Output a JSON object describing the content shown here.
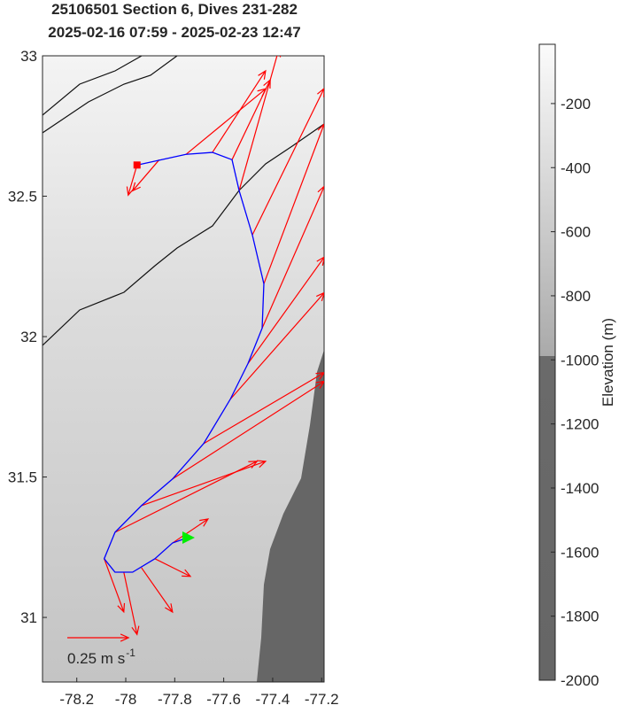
{
  "chart_data": {
    "type": "quiver-map",
    "title": [
      "25106501 Section 6, Dives 231-282",
      "2025-02-16 07:59 - 2025-02-23 12:47"
    ],
    "xlim": [
      -78.34,
      -77.19
    ],
    "xticks": [
      -78.2,
      -78,
      -77.8,
      -77.6,
      -77.4,
      -77.2
    ],
    "ylim": [
      30.77,
      33
    ],
    "yticks": [
      31,
      31.5,
      32,
      32.5,
      33
    ],
    "track": {
      "color": "#0000ff",
      "lon": [
        -77.954,
        -77.754,
        -77.646,
        -77.566,
        -77.537,
        -77.483,
        -77.436,
        -77.443,
        -77.501,
        -77.573,
        -77.682,
        -77.809,
        -77.936,
        -78.044,
        -78.088,
        -78.044,
        -77.972,
        -77.881,
        -77.809,
        -77.747
      ],
      "lat": [
        32.611,
        32.649,
        32.656,
        32.63,
        32.52,
        32.362,
        32.188,
        32.03,
        31.904,
        31.777,
        31.619,
        31.493,
        31.398,
        31.303,
        31.209,
        31.161,
        31.161,
        31.209,
        31.265,
        31.284
      ]
    },
    "start_color": "#ff0000",
    "end_color": "#00ee00",
    "currents": {
      "color": "#ff0000",
      "lon": [
        -77.954,
        -77.863,
        -77.754,
        -77.646,
        -77.566,
        -77.537,
        -77.483,
        -77.436,
        -77.443,
        -77.501,
        -77.573,
        -77.682,
        -77.809,
        -77.936,
        -78.044,
        -78.088,
        -78.008,
        -77.936,
        -77.881,
        -77.809
      ],
      "lat": [
        32.611,
        32.63,
        32.649,
        32.656,
        32.63,
        32.52,
        32.362,
        32.188,
        32.03,
        31.904,
        31.777,
        31.619,
        31.493,
        31.398,
        31.303,
        31.209,
        31.161,
        31.177,
        31.209,
        31.265
      ],
      "u": [
        -0.036,
        -0.109,
        0.326,
        0.217,
        0.156,
        0.163,
        0.293,
        0.246,
        0.254,
        0.312,
        0.384,
        0.493,
        0.62,
        0.507,
        0.58,
        0.08,
        0.054,
        0.127,
        0.145,
        0.145
      ],
      "v": [
        -0.123,
        -0.127,
        0.268,
        0.333,
        0.326,
        0.58,
        0.598,
        0.652,
        0.58,
        0.435,
        0.435,
        0.29,
        0.399,
        0.181,
        0.29,
        -0.217,
        -0.254,
        -0.181,
        -0.072,
        0.098
      ]
    },
    "scale": {
      "value": 0.25,
      "label": "0.25 m s",
      "exponent": "-1"
    },
    "colorbar": {
      "label": "Elevation (m)",
      "lim": [
        -2000,
        -15
      ],
      "ticks": [
        -200,
        -400,
        -600,
        -800,
        -1000,
        -1200,
        -1400,
        -1600,
        -1800,
        -2000
      ]
    }
  }
}
